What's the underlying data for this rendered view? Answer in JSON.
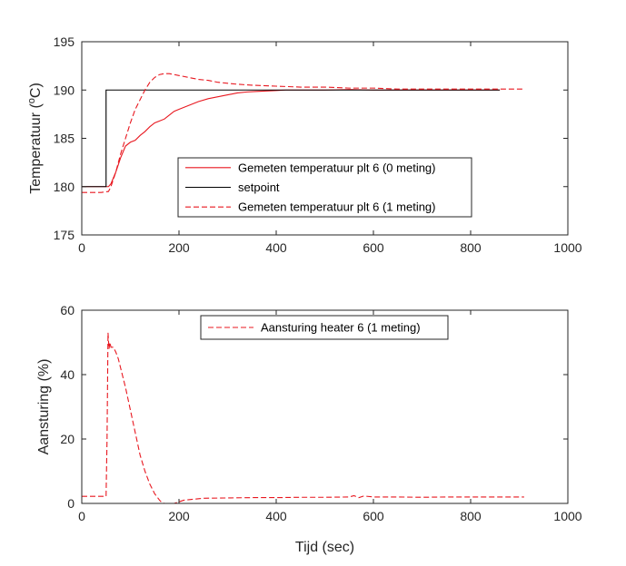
{
  "chart_data": [
    {
      "type": "line",
      "title": "",
      "xlabel": "",
      "ylabel": "Temperatuur (",
      "ylabel_superscript": "o",
      "ylabel_suffix": "C)",
      "xlim": [
        0,
        1000
      ],
      "ylim": [
        175,
        195
      ],
      "xticks": [
        "0",
        "200",
        "400",
        "600",
        "800",
        "1000"
      ],
      "yticks": [
        "175",
        "180",
        "185",
        "190",
        "195"
      ],
      "xtick_values": [
        0,
        200,
        400,
        600,
        800,
        1000
      ],
      "ytick_values": [
        175,
        180,
        185,
        190,
        195
      ],
      "grid": false,
      "legend_position": "lower-center",
      "series": [
        {
          "name": "Gemeten temperatuur plt 6 (0 meting)",
          "color": "#e8171f",
          "style": "solid",
          "x": [
            0,
            20,
            40,
            50,
            55,
            60,
            70,
            80,
            90,
            100,
            110,
            120,
            130,
            140,
            150,
            160,
            170,
            180,
            190,
            200,
            220,
            240,
            260,
            280,
            300,
            320,
            340,
            360,
            380,
            400,
            420,
            450,
            500,
            550,
            600,
            650,
            700,
            750,
            800,
            860
          ],
          "y": [
            180,
            180,
            180,
            180,
            180,
            180.3,
            181.5,
            183.0,
            184.2,
            184.6,
            184.8,
            185.3,
            185.7,
            186.2,
            186.6,
            186.8,
            187.0,
            187.4,
            187.8,
            188.0,
            188.4,
            188.8,
            189.1,
            189.3,
            189.5,
            189.7,
            189.8,
            189.85,
            189.9,
            189.95,
            190.0,
            190.0,
            190.0,
            190.05,
            190.0,
            190.0,
            190.0,
            190.0,
            190.0,
            190.0
          ]
        },
        {
          "name": "setpoint",
          "color": "#000000",
          "style": "solid",
          "x": [
            0,
            50,
            50,
            860
          ],
          "y": [
            180,
            180,
            190,
            190
          ]
        },
        {
          "name": "Gemeten temperatuur plt 6 (1 meting)",
          "color": "#e8171f",
          "style": "dashed",
          "x": [
            0,
            20,
            40,
            55,
            60,
            70,
            80,
            90,
            100,
            110,
            120,
            130,
            140,
            150,
            160,
            170,
            180,
            190,
            200,
            220,
            240,
            260,
            280,
            300,
            320,
            350,
            400,
            450,
            500,
            550,
            600,
            650,
            700,
            800,
            910
          ],
          "y": [
            179.4,
            179.4,
            179.4,
            179.5,
            180.0,
            181.5,
            183.4,
            185.0,
            186.6,
            188.0,
            189.0,
            190.0,
            190.8,
            191.3,
            191.6,
            191.7,
            191.7,
            191.6,
            191.5,
            191.3,
            191.1,
            191.0,
            190.8,
            190.7,
            190.6,
            190.5,
            190.4,
            190.3,
            190.3,
            190.2,
            190.2,
            190.1,
            190.1,
            190.1,
            190.1
          ]
        }
      ]
    },
    {
      "type": "line",
      "title": "",
      "xlabel": "Tijd (sec)",
      "ylabel": "Aansturing (%)",
      "xlim": [
        0,
        1000
      ],
      "ylim": [
        0,
        60
      ],
      "xticks": [
        "0",
        "200",
        "400",
        "600",
        "800",
        "1000"
      ],
      "yticks": [
        "0",
        "20",
        "40",
        "60"
      ],
      "xtick_values": [
        0,
        200,
        400,
        600,
        800,
        1000
      ],
      "ytick_values": [
        0,
        20,
        40,
        60
      ],
      "grid": false,
      "legend_position": "top-center",
      "series": [
        {
          "name": "Aansturing heater 6 (1 meting)",
          "color": "#e8171f",
          "style": "dashed",
          "x": [
            0,
            20,
            40,
            50,
            52,
            54,
            56,
            58,
            60,
            65,
            70,
            75,
            80,
            90,
            100,
            110,
            120,
            130,
            140,
            150,
            160,
            165,
            170,
            180,
            190,
            200,
            210,
            250,
            300,
            350,
            400,
            450,
            500,
            550,
            560,
            570,
            580,
            600,
            650,
            700,
            750,
            800,
            850,
            910
          ],
          "y": [
            2.2,
            2.2,
            2.2,
            2.2,
            20,
            53,
            48,
            50,
            48.5,
            48.5,
            47,
            45,
            42,
            36,
            29,
            22,
            15,
            10,
            6,
            3,
            1,
            0.2,
            0,
            0,
            0,
            0.5,
            1.0,
            1.6,
            1.7,
            1.8,
            1.8,
            1.9,
            1.9,
            2.0,
            2.4,
            1.8,
            2.3,
            2.0,
            2.0,
            1.9,
            2.0,
            2.0,
            2.0,
            2.0
          ]
        }
      ]
    }
  ]
}
